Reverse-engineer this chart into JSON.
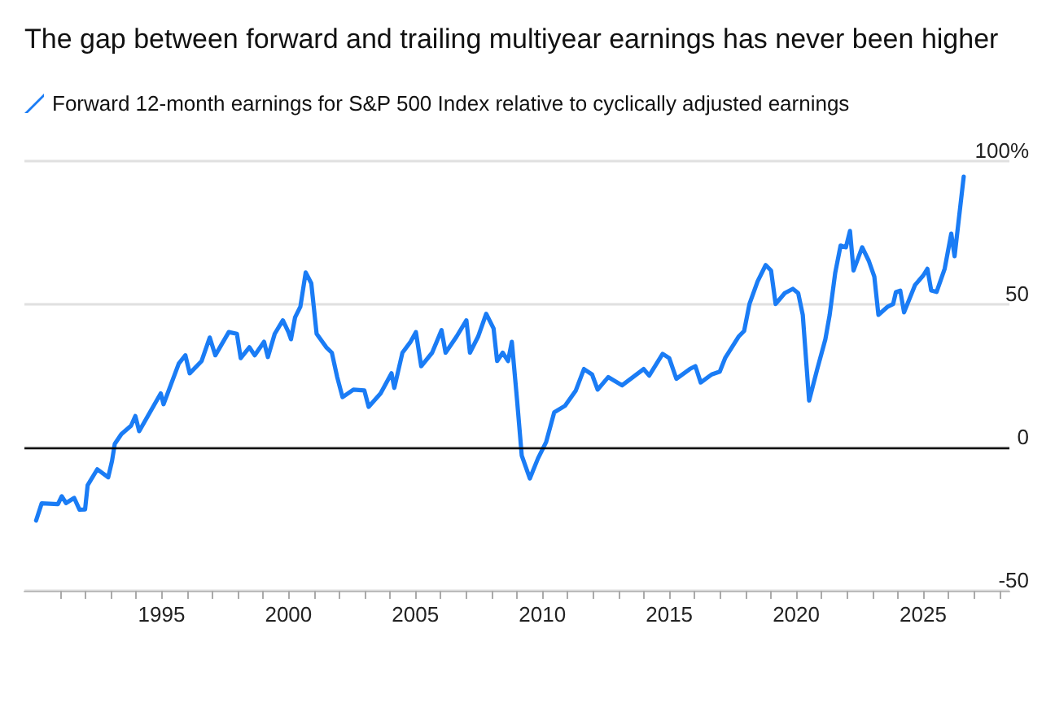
{
  "chart_data": {
    "type": "line",
    "title": "The gap between forward and trailing multiyear earnings has never been higher",
    "legend": "top left",
    "grid": "y",
    "marker": "none",
    "line_style": "solid",
    "series": [
      {
        "name": "Forward 12-month earnings for S&P 500 Index relative to cyclically adjusted earnings",
        "color": "#1a7cf5",
        "x": [
          1990.06,
          1990.28,
          1990.92,
          1991.07,
          1991.24,
          1991.56,
          1991.77,
          1991.99,
          1992.09,
          1992.47,
          1992.9,
          1993.05,
          1993.16,
          1993.42,
          1993.8,
          1993.97,
          1994.12,
          1994.97,
          1995.08,
          1995.68,
          1995.94,
          1996.11,
          1996.58,
          1996.9,
          1997.12,
          1997.65,
          1997.97,
          1998.12,
          1998.46,
          1998.67,
          1999.04,
          1999.19,
          1999.46,
          1999.78,
          2000,
          2000.1,
          2000.26,
          2000.47,
          2000.68,
          2000.9,
          2001.11,
          2001.49,
          2001.71,
          2001.92,
          2002.13,
          2002.56,
          2002.99,
          2003.16,
          2003.63,
          2004.06,
          2004.17,
          2004.49,
          2004.81,
          2005.02,
          2005.23,
          2005.66,
          2006.03,
          2006.19,
          2006.62,
          2007.01,
          2007.15,
          2007.47,
          2007.79,
          2008.08,
          2008.22,
          2008.44,
          2008.65,
          2008.8,
          2009.01,
          2009.19,
          2009.51,
          2009.83,
          2010.15,
          2010.47,
          2010.9,
          2011.32,
          2011.64,
          2011.96,
          2012.18,
          2012.6,
          2013.14,
          2013.99,
          2014.21,
          2014.74,
          2015,
          2015.28,
          2015.81,
          2016.03,
          2016.24,
          2016.67,
          2016.99,
          2017.2,
          2017.73,
          2017.95,
          2018.16,
          2018.48,
          2018.8,
          2019.01,
          2019.19,
          2019.55,
          2019.87,
          2020.08,
          2020.26,
          2020.51,
          2020.83,
          2021.15,
          2021.32,
          2021.54,
          2021.75,
          2021.96,
          2022.12,
          2022.26,
          2022.6,
          2022.86,
          2023.08,
          2023.24,
          2023.61,
          2023.82,
          2023.93,
          2024.1,
          2024.25,
          2024.68,
          2025,
          2025.17,
          2025.32,
          2025.53,
          2025.85,
          2026.11,
          2026.24,
          2026.6
        ],
        "values": [
          -25.5,
          -19.5,
          -19.8,
          -17,
          -19.4,
          -17.6,
          -21.7,
          -21.6,
          -13.2,
          -7.6,
          -10.4,
          -4.7,
          1.3,
          4.7,
          7.6,
          11,
          5.7,
          18.9,
          15.1,
          29.3,
          32.2,
          25.9,
          30.2,
          38.4,
          32.2,
          40.3,
          39.7,
          31.2,
          35,
          32.2,
          36.9,
          31.6,
          39.7,
          44.4,
          40.3,
          37.8,
          45.4,
          49.2,
          61.1,
          57.3,
          39.7,
          35,
          33.1,
          24.6,
          17.6,
          20.2,
          19.9,
          14.2,
          18.9,
          25.9,
          20.8,
          33.1,
          36.9,
          40.3,
          28.4,
          33.1,
          41,
          33.1,
          38.7,
          44.4,
          33.1,
          38.7,
          46.7,
          41.6,
          30.2,
          33.1,
          30.2,
          36.9,
          16.1,
          -2.8,
          -10.8,
          -3.8,
          1.9,
          12.3,
          14.6,
          19.9,
          27.4,
          25.5,
          20.2,
          24.6,
          21.7,
          27.4,
          25.1,
          32.7,
          31.2,
          24,
          27.4,
          28.4,
          22.7,
          25.5,
          26.5,
          31.2,
          38.7,
          40.7,
          50.1,
          58,
          63.7,
          61.8,
          50.1,
          53.9,
          55.4,
          53.9,
          46.3,
          16.4,
          27.4,
          37.8,
          46.3,
          61.1,
          70.5,
          69.9,
          75.6,
          61.8,
          69.9,
          65.2,
          59.6,
          46.3,
          49.2,
          50.1,
          54.3,
          54.8,
          47.2,
          56.7,
          60,
          62.4,
          54.8,
          54.3,
          62.4,
          74.7,
          66.8,
          94.6
        ]
      }
    ],
    "xlim": [
      1989.6,
      2028.4
    ],
    "xticks": [
      {
        "value": 1991,
        "label": null
      },
      {
        "value": 1992,
        "label": null
      },
      {
        "value": 1993,
        "label": null
      },
      {
        "value": 1994,
        "label": null
      },
      1995,
      {
        "value": 1996,
        "label": null
      },
      {
        "value": 1997,
        "label": null
      },
      {
        "value": 1998,
        "label": null
      },
      {
        "value": 1999,
        "label": null
      },
      2000,
      {
        "value": 2001,
        "label": null
      },
      {
        "value": 2002,
        "label": null
      },
      {
        "value": 2003,
        "label": null
      },
      {
        "value": 2004,
        "label": null
      },
      2005,
      {
        "value": 2006,
        "label": null
      },
      {
        "value": 2007,
        "label": null
      },
      {
        "value": 2008,
        "label": null
      },
      {
        "value": 2009,
        "label": null
      },
      2010,
      {
        "value": 2011,
        "label": null
      },
      {
        "value": 2012,
        "label": null
      },
      {
        "value": 2013,
        "label": null
      },
      {
        "value": 2014,
        "label": null
      },
      2015,
      {
        "value": 2016,
        "label": null
      },
      {
        "value": 2017,
        "label": null
      },
      {
        "value": 2018,
        "label": null
      },
      {
        "value": 2019,
        "label": null
      },
      2020,
      {
        "value": 2021,
        "label": null
      },
      {
        "value": 2022,
        "label": null
      },
      {
        "value": 2023,
        "label": null
      },
      {
        "value": 2024,
        "label": null
      },
      2025,
      {
        "value": 2026,
        "label": null
      },
      {
        "value": 2027,
        "label": null
      },
      {
        "value": 2028,
        "label": null
      }
    ],
    "ylim": [
      -50,
      100
    ],
    "yticks": [
      -50,
      0,
      50,
      {
        "value": 100,
        "label": "100%"
      }
    ],
    "ref_lines": [
      {
        "axis": "y",
        "value": 0,
        "color": "#000000"
      }
    ]
  }
}
